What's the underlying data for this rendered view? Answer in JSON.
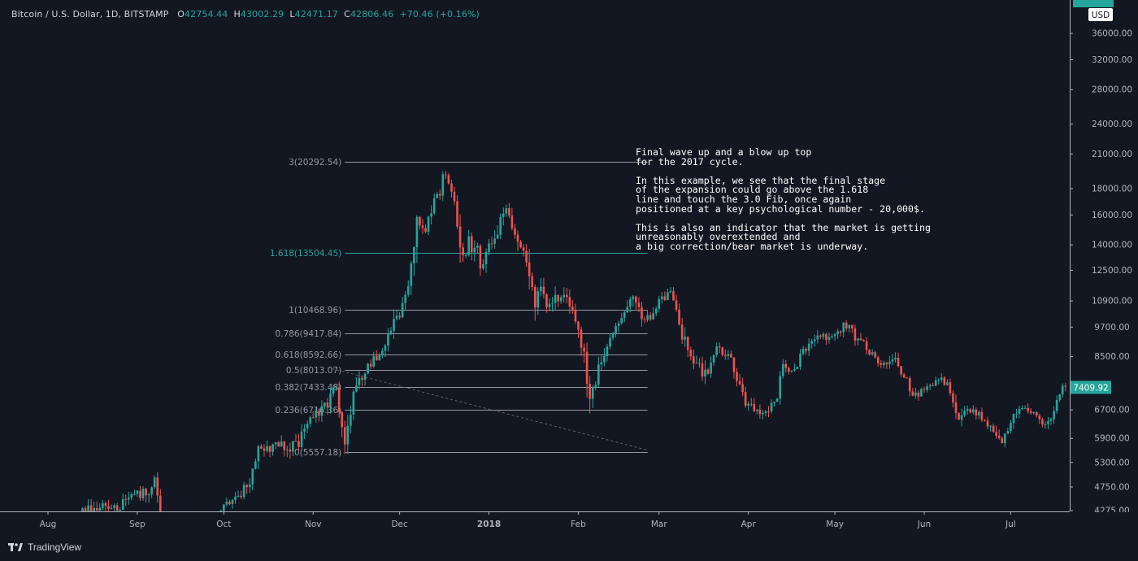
{
  "legend": {
    "symbol": "Bitcoin / U.S. Dollar, 1D, BITSTAMP",
    "o_label": "O",
    "o": "42754.44",
    "h_label": "H",
    "h": "43002.29",
    "l_label": "L",
    "l": "42471.17",
    "c_label": "C",
    "c": "42806.46",
    "change": "+70.46 (+0.16%)"
  },
  "annotation": {
    "paragraphs": [
      [
        "Final wave up and a blow up top",
        "for the 2017 cycle."
      ],
      [
        "In this example, we see that the final stage",
        "of the expansion could go above the 1.618",
        "line and touch the 3.0 Fib, once again",
        "positioned at a key psychological number - 20,000$."
      ],
      [
        "This is also an indicator that the market is getting",
        "unreasonably overextended and",
        "a big correction/bear market is underway."
      ]
    ]
  },
  "branding": {
    "name": "TradingView"
  },
  "colors": {
    "background": "#131722",
    "up": "#26a69a",
    "down": "#ef5350",
    "fib_highlight": "#26a69a",
    "fib_line": "#9598a1",
    "text": "#d1d4dc",
    "axis_text": "#b2b5be"
  },
  "chart_data": {
    "type": "candlestick",
    "title": "Bitcoin / U.S. Dollar, 1D, BITSTAMP",
    "y_scale": "log",
    "currency_label": "USD",
    "y_ticks": [
      36000,
      32000,
      28000,
      24000,
      21000,
      18000,
      16000,
      14000,
      12500,
      10900,
      9700,
      8500,
      6700,
      5900,
      5300,
      4750,
      4275
    ],
    "y_tick_labels": [
      "36000.00",
      "32000.00",
      "28000.00",
      "24000.00",
      "21000.00",
      "18000.00",
      "16000.00",
      "14000.00",
      "12500.00",
      "10900.00",
      "9700.00",
      "8500.00",
      "6700.00",
      "5900.00",
      "5300.00",
      "4750.00",
      "4275.00"
    ],
    "x_ticks": [
      {
        "date": "2017-08-01",
        "label": "Aug"
      },
      {
        "date": "2017-09-01",
        "label": "Sep"
      },
      {
        "date": "2017-10-01",
        "label": "Oct"
      },
      {
        "date": "2017-11-01",
        "label": "Nov"
      },
      {
        "date": "2017-12-01",
        "label": "Dec"
      },
      {
        "date": "2018-01-01",
        "label": "2018",
        "bold": true
      },
      {
        "date": "2018-02-01",
        "label": "Feb"
      },
      {
        "date": "2018-03-01",
        "label": "Mar"
      },
      {
        "date": "2018-04-01",
        "label": "Apr"
      },
      {
        "date": "2018-05-01",
        "label": "May"
      },
      {
        "date": "2018-06-01",
        "label": "Jun"
      },
      {
        "date": "2018-07-01",
        "label": "Jul"
      }
    ],
    "last_price_label": "7409.92",
    "last_price": 7409.92,
    "fib_levels": [
      {
        "ratio": "3",
        "price": 20292.54,
        "label": "3(20292.54)",
        "highlight": false
      },
      {
        "ratio": "1.618",
        "price": 13504.45,
        "label": "1.618(13504.45)",
        "highlight": true
      },
      {
        "ratio": "1",
        "price": 10468.96,
        "label": "1(10468.96)",
        "highlight": false
      },
      {
        "ratio": "0.786",
        "price": 9417.84,
        "label": "0.786(9417.84)",
        "highlight": false
      },
      {
        "ratio": "0.618",
        "price": 8592.66,
        "label": "0.618(8592.66)",
        "highlight": false
      },
      {
        "ratio": "0.5",
        "price": 8013.07,
        "label": "0.5(8013.07)",
        "highlight": false
      },
      {
        "ratio": "0.382",
        "price": 7433.48,
        "label": "0.382(7433.48)",
        "highlight": false
      },
      {
        "ratio": "0.236",
        "price": 6716.36,
        "label": "0.236(6716.36)",
        "highlight": false
      },
      {
        "ratio": "0",
        "price": 5557.18,
        "label": "0(5557.18)",
        "highlight": false
      }
    ],
    "fib_range": {
      "start": "2017-11-12",
      "end": "2018-02-25"
    },
    "trend_line": [
      {
        "date": "2017-11-06",
        "price": 8100
      },
      {
        "date": "2018-02-25",
        "price": 5600
      }
    ],
    "anchors": [
      {
        "date": "2017-08-01",
        "price": 4000,
        "vol": 0.03
      },
      {
        "date": "2017-08-15",
        "price": 4300,
        "vol": 0.035
      },
      {
        "date": "2017-08-25",
        "price": 4350,
        "vol": 0.03
      },
      {
        "date": "2017-09-01",
        "price": 4700,
        "vol": 0.035
      },
      {
        "date": "2017-09-05",
        "price": 4550,
        "vol": 0.04
      },
      {
        "date": "2017-09-07",
        "price": 4800,
        "vol": 0.04
      },
      {
        "date": "2017-09-14",
        "price": 3400,
        "vol": 0.06
      },
      {
        "date": "2017-09-16",
        "price": 3800,
        "vol": 0.05
      },
      {
        "date": "2017-09-22",
        "price": 3650,
        "vol": 0.03
      },
      {
        "date": "2017-10-01",
        "price": 4350,
        "vol": 0.03
      },
      {
        "date": "2017-10-10",
        "price": 4800,
        "vol": 0.035
      },
      {
        "date": "2017-10-13",
        "price": 5600,
        "vol": 0.04
      },
      {
        "date": "2017-10-20",
        "price": 5800,
        "vol": 0.03
      },
      {
        "date": "2017-10-24",
        "price": 5500,
        "vol": 0.045
      },
      {
        "date": "2017-10-31",
        "price": 6400,
        "vol": 0.035
      },
      {
        "date": "2017-11-07",
        "price": 7100,
        "vol": 0.035
      },
      {
        "date": "2017-11-09",
        "price": 7350,
        "vol": 0.035
      },
      {
        "date": "2017-11-12",
        "price": 5800,
        "vol": 0.07
      },
      {
        "date": "2017-11-15",
        "price": 7200,
        "vol": 0.05
      },
      {
        "date": "2017-11-20",
        "price": 8200,
        "vol": 0.03
      },
      {
        "date": "2017-11-25",
        "price": 8700,
        "vol": 0.03
      },
      {
        "date": "2017-11-29",
        "price": 9800,
        "vol": 0.05
      },
      {
        "date": "2017-12-04",
        "price": 11500,
        "vol": 0.04
      },
      {
        "date": "2017-12-07",
        "price": 16000,
        "vol": 0.08
      },
      {
        "date": "2017-12-10",
        "price": 15000,
        "vol": 0.06
      },
      {
        "date": "2017-12-13",
        "price": 16500,
        "vol": 0.04
      },
      {
        "date": "2017-12-17",
        "price": 19300,
        "vol": 0.035
      },
      {
        "date": "2017-12-20",
        "price": 16500,
        "vol": 0.05
      },
      {
        "date": "2017-12-22",
        "price": 13800,
        "vol": 0.08
      },
      {
        "date": "2017-12-25",
        "price": 14000,
        "vol": 0.05
      },
      {
        "date": "2017-12-30",
        "price": 12800,
        "vol": 0.06
      },
      {
        "date": "2018-01-04",
        "price": 15000,
        "vol": 0.05
      },
      {
        "date": "2018-01-07",
        "price": 16800,
        "vol": 0.04
      },
      {
        "date": "2018-01-10",
        "price": 14500,
        "vol": 0.05
      },
      {
        "date": "2018-01-14",
        "price": 13400,
        "vol": 0.05
      },
      {
        "date": "2018-01-16",
        "price": 10800,
        "vol": 0.09
      },
      {
        "date": "2018-01-19",
        "price": 11500,
        "vol": 0.05
      },
      {
        "date": "2018-01-22",
        "price": 10500,
        "vol": 0.05
      },
      {
        "date": "2018-01-28",
        "price": 11500,
        "vol": 0.04
      },
      {
        "date": "2018-02-01",
        "price": 9200,
        "vol": 0.05
      },
      {
        "date": "2018-02-03",
        "price": 8800,
        "vol": 0.06
      },
      {
        "date": "2018-02-05",
        "price": 6900,
        "vol": 0.08
      },
      {
        "date": "2018-02-07",
        "price": 7700,
        "vol": 0.06
      },
      {
        "date": "2018-02-10",
        "price": 8500,
        "vol": 0.04
      },
      {
        "date": "2018-02-14",
        "price": 9500,
        "vol": 0.04
      },
      {
        "date": "2018-02-20",
        "price": 11200,
        "vol": 0.04
      },
      {
        "date": "2018-02-24",
        "price": 9800,
        "vol": 0.04
      },
      {
        "date": "2018-03-02",
        "price": 11000,
        "vol": 0.03
      },
      {
        "date": "2018-03-05",
        "price": 11500,
        "vol": 0.03
      },
      {
        "date": "2018-03-09",
        "price": 9300,
        "vol": 0.05
      },
      {
        "date": "2018-03-14",
        "price": 8200,
        "vol": 0.04
      },
      {
        "date": "2018-03-18",
        "price": 7900,
        "vol": 0.05
      },
      {
        "date": "2018-03-21",
        "price": 8900,
        "vol": 0.03
      },
      {
        "date": "2018-03-25",
        "price": 8500,
        "vol": 0.03
      },
      {
        "date": "2018-03-31",
        "price": 6900,
        "vol": 0.04
      },
      {
        "date": "2018-04-06",
        "price": 6600,
        "vol": 0.03
      },
      {
        "date": "2018-04-10",
        "price": 6850,
        "vol": 0.03
      },
      {
        "date": "2018-04-13",
        "price": 7900,
        "vol": 0.04
      },
      {
        "date": "2018-04-18",
        "price": 8200,
        "vol": 0.03
      },
      {
        "date": "2018-04-24",
        "price": 9300,
        "vol": 0.03
      },
      {
        "date": "2018-04-30",
        "price": 9300,
        "vol": 0.025
      },
      {
        "date": "2018-05-05",
        "price": 9800,
        "vol": 0.025
      },
      {
        "date": "2018-05-10",
        "price": 9100,
        "vol": 0.03
      },
      {
        "date": "2018-05-16",
        "price": 8300,
        "vol": 0.03
      },
      {
        "date": "2018-05-22",
        "price": 8400,
        "vol": 0.03
      },
      {
        "date": "2018-05-28",
        "price": 7200,
        "vol": 0.03
      },
      {
        "date": "2018-06-05",
        "price": 7600,
        "vol": 0.025
      },
      {
        "date": "2018-06-09",
        "price": 7600,
        "vol": 0.02
      },
      {
        "date": "2018-06-12",
        "price": 6500,
        "vol": 0.04
      },
      {
        "date": "2018-06-18",
        "price": 6700,
        "vol": 0.025
      },
      {
        "date": "2018-06-24",
        "price": 6100,
        "vol": 0.035
      },
      {
        "date": "2018-06-28",
        "price": 5900,
        "vol": 0.03
      },
      {
        "date": "2018-07-03",
        "price": 6600,
        "vol": 0.03
      },
      {
        "date": "2018-07-08",
        "price": 6750,
        "vol": 0.025
      },
      {
        "date": "2018-07-12",
        "price": 6300,
        "vol": 0.025
      },
      {
        "date": "2018-07-15",
        "price": 6350,
        "vol": 0.025
      },
      {
        "date": "2018-07-18",
        "price": 7400,
        "vol": 0.05
      },
      {
        "date": "2018-07-22",
        "price": 7410,
        "vol": 0.025
      }
    ]
  }
}
